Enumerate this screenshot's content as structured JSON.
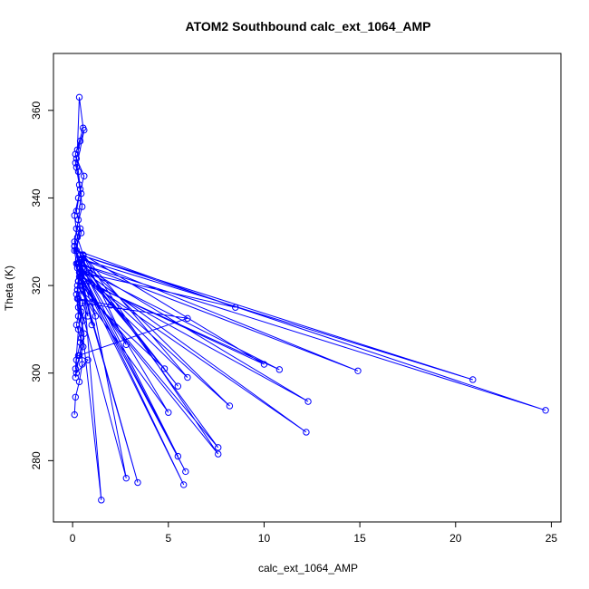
{
  "chart_data": {
    "type": "line",
    "title": "ATOM2 Southbound calc_ext_1064_AMP",
    "xlabel": "calc_ext_1064_AMP",
    "ylabel": "Theta (K)",
    "xlim": [
      -1,
      25.5
    ],
    "ylim": [
      266,
      373
    ],
    "xticks": [
      0,
      5,
      10,
      15,
      20,
      25
    ],
    "yticks": [
      280,
      300,
      320,
      340,
      360
    ],
    "grid": false,
    "legend": "none",
    "series_color": "#0000ff",
    "markers": "open-circle",
    "series": [
      {
        "x": [
          0.1,
          0.15,
          0.35,
          0.5,
          0.45,
          0.3,
          0.2,
          0.4,
          0.55,
          0.25,
          0.1,
          0.3,
          0.6,
          0.2,
          0.4,
          0.15,
          0.35,
          0.5,
          0.2,
          0.1,
          0.45,
          0.3,
          0.25,
          0.55,
          0.4,
          0.2,
          0.15,
          0.35,
          0.6,
          0.3,
          0.5,
          0.25,
          0.1,
          0.45,
          0.2,
          0.4,
          0.3,
          0.15,
          0.55,
          0.35,
          0.25,
          0.6,
          0.2,
          0.45,
          0.3,
          0.1,
          0.5,
          0.35,
          0.25,
          0.4,
          0.2,
          0.55,
          0.15,
          0.3,
          0.45,
          0.25,
          0.35,
          0.1,
          0.4,
          0.2,
          0.3,
          24.7,
          0.4,
          20.9,
          0.5,
          14.9,
          0.3,
          12.3,
          0.45,
          12.2,
          0.35,
          10.8,
          0.6,
          10.0,
          0.2,
          8.5,
          0.5,
          8.2,
          0.4,
          7.6,
          0.3,
          7.6,
          0.55,
          6.0,
          0.35,
          5.9,
          0.25,
          5.8,
          0.45,
          5.5,
          0.3,
          5.5,
          0.5,
          5.0,
          0.4,
          4.8,
          0.2,
          3.4,
          0.35,
          2.8,
          0.55,
          2.8,
          0.3,
          2.0,
          0.45,
          1.5,
          0.25,
          1.2,
          0.4,
          1.0,
          0.35,
          0.8,
          0.5,
          6.0,
          0.3,
          0.8,
          0.2
        ],
        "y": [
          290.5,
          294.5,
          298,
          302,
          308,
          313,
          318,
          322,
          327,
          331,
          336,
          340,
          345,
          349,
          353,
          348,
          343,
          338,
          333,
          329,
          325,
          321,
          317,
          312,
          307,
          303,
          299,
          304,
          309,
          315,
          320,
          324,
          328,
          332,
          337,
          342,
          346,
          350,
          356,
          363,
          351,
          355.5,
          347,
          341,
          335,
          330,
          326,
          323,
          319,
          316,
          311,
          306,
          301,
          310,
          314,
          319,
          324,
          329,
          333,
          328,
          325,
          291.5,
          327,
          298.5,
          326,
          300.5,
          325,
          293.5,
          322,
          286.5,
          324,
          300.8,
          321,
          302,
          328,
          315,
          323,
          292.5,
          326,
          283,
          321,
          281.5,
          327,
          299,
          323,
          277.5,
          325,
          274.5,
          322,
          281,
          326,
          297,
          324,
          291,
          319,
          301,
          325,
          275,
          322,
          306.5,
          327,
          276,
          317,
          315.5,
          326,
          271,
          320,
          313,
          323,
          311,
          325,
          313,
          316,
          312.5,
          304,
          303,
          300
        ]
      }
    ]
  }
}
